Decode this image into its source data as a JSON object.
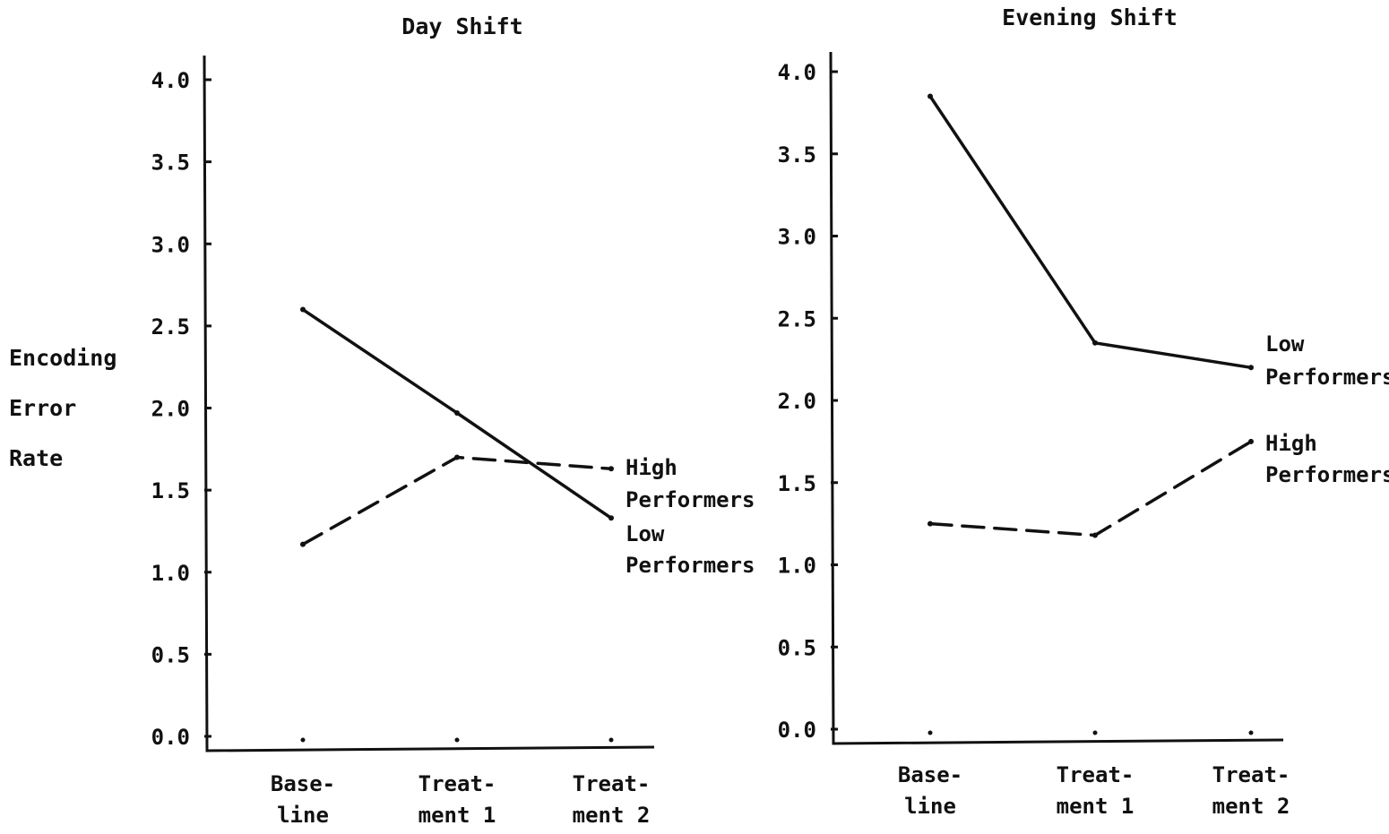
{
  "ylabel_lines": [
    "Encoding",
    "Error",
    "Rate"
  ],
  "chart_data": [
    {
      "type": "line",
      "title": "Day Shift",
      "ylabel": "Encoding Error Rate",
      "ylim": [
        0,
        4
      ],
      "yticks": [
        "0.0",
        "0.5",
        "1.0",
        "1.5",
        "2.0",
        "2.5",
        "3.0",
        "3.5",
        "4.0"
      ],
      "categories": [
        [
          "Base-",
          "line"
        ],
        [
          "Treat-",
          "ment 1"
        ],
        [
          "Treat-",
          "ment 2"
        ]
      ],
      "series": [
        {
          "name": "Low Performers",
          "label_lines": [
            "Low",
            "Performers"
          ],
          "style": "solid",
          "values": [
            2.6,
            1.97,
            1.33
          ]
        },
        {
          "name": "High Performers",
          "label_lines": [
            "High",
            "Performers"
          ],
          "style": "dashed",
          "values": [
            1.17,
            1.7,
            1.63
          ]
        }
      ],
      "grid": false
    },
    {
      "type": "line",
      "title": "Evening Shift",
      "ylim": [
        0,
        4
      ],
      "yticks": [
        "0.0",
        "0.5",
        "1.0",
        "1.5",
        "2.0",
        "2.5",
        "3.0",
        "3.5",
        "4.0"
      ],
      "categories": [
        [
          "Base-",
          "line"
        ],
        [
          "Treat-",
          "ment 1"
        ],
        [
          "Treat-",
          "ment 2"
        ]
      ],
      "series": [
        {
          "name": "Low Performers",
          "label_lines": [
            "Low",
            "Performers"
          ],
          "style": "solid",
          "values": [
            3.85,
            2.35,
            2.2
          ]
        },
        {
          "name": "High Performers",
          "label_lines": [
            "High",
            "Performers"
          ],
          "style": "dashed",
          "values": [
            1.25,
            1.18,
            1.75
          ]
        }
      ],
      "grid": false
    }
  ]
}
